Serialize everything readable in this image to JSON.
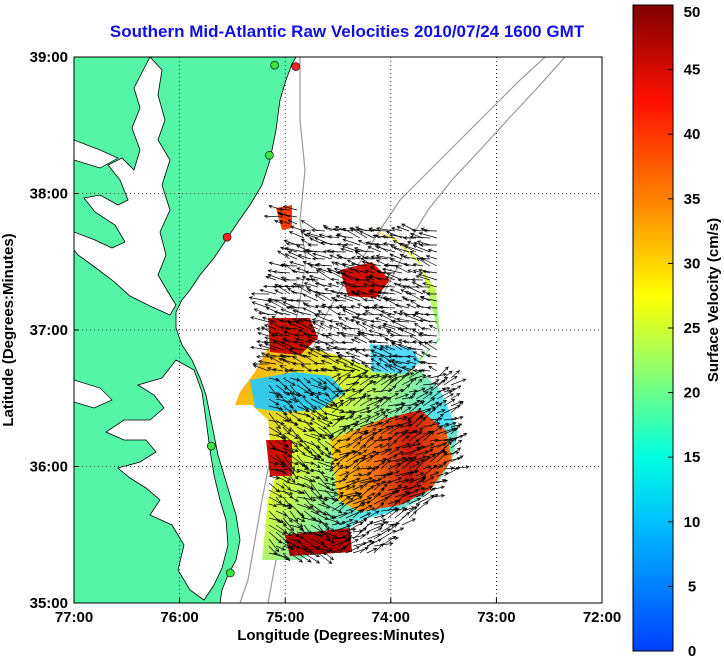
{
  "title": "Southern Mid-Atlantic Raw Velocities 2010/07/24 1600 GMT",
  "chart_data": {
    "type": "heatmap",
    "xlabel": "Longitude (Degrees:Minutes)",
    "ylabel": "Latitude (Degrees:Minutes)",
    "colorbar_label": "Surface Velocity (cm/s)",
    "xlim": [
      -77,
      -72
    ],
    "ylim": [
      35,
      39
    ],
    "x_ticks": [
      {
        "value": -77,
        "label": "77:00"
      },
      {
        "value": -76,
        "label": "76:00"
      },
      {
        "value": -75,
        "label": "75:00"
      },
      {
        "value": -74,
        "label": "74:00"
      },
      {
        "value": -73,
        "label": "73:00"
      },
      {
        "value": -72,
        "label": "72:00"
      }
    ],
    "y_ticks": [
      {
        "value": 35,
        "label": "35:00"
      },
      {
        "value": 36,
        "label": "36:00"
      },
      {
        "value": 37,
        "label": "37:00"
      },
      {
        "value": 38,
        "label": "38:00"
      },
      {
        "value": 39,
        "label": "39:00"
      }
    ],
    "colorbar_range": [
      0,
      50
    ],
    "colorbar_ticks": [
      {
        "value": 0,
        "label": "0"
      },
      {
        "value": 5,
        "label": "5"
      },
      {
        "value": 10,
        "label": "10"
      },
      {
        "value": 15,
        "label": "15"
      },
      {
        "value": 20,
        "label": "20"
      },
      {
        "value": 25,
        "label": "25"
      },
      {
        "value": 30,
        "label": "30"
      },
      {
        "value": 35,
        "label": "35"
      },
      {
        "value": 40,
        "label": "40"
      },
      {
        "value": 45,
        "label": "45"
      },
      {
        "value": 50,
        "label": "50"
      }
    ],
    "grid": "dotted",
    "colormap": "jet",
    "land_color": "#55f5a8",
    "stations": [
      {
        "lon": -74.9,
        "lat": 38.93,
        "color": "#ff2020"
      },
      {
        "lon": -75.1,
        "lat": 38.94,
        "color": "#3fe03f"
      },
      {
        "lon": -75.15,
        "lat": 38.28,
        "color": "#3fe03f"
      },
      {
        "lon": -75.55,
        "lat": 37.68,
        "color": "#ff2020"
      },
      {
        "lon": -75.7,
        "lat": 36.15,
        "color": "#3fe03f"
      },
      {
        "lon": -75.52,
        "lat": 35.22,
        "color": "#3fe03f"
      }
    ]
  }
}
